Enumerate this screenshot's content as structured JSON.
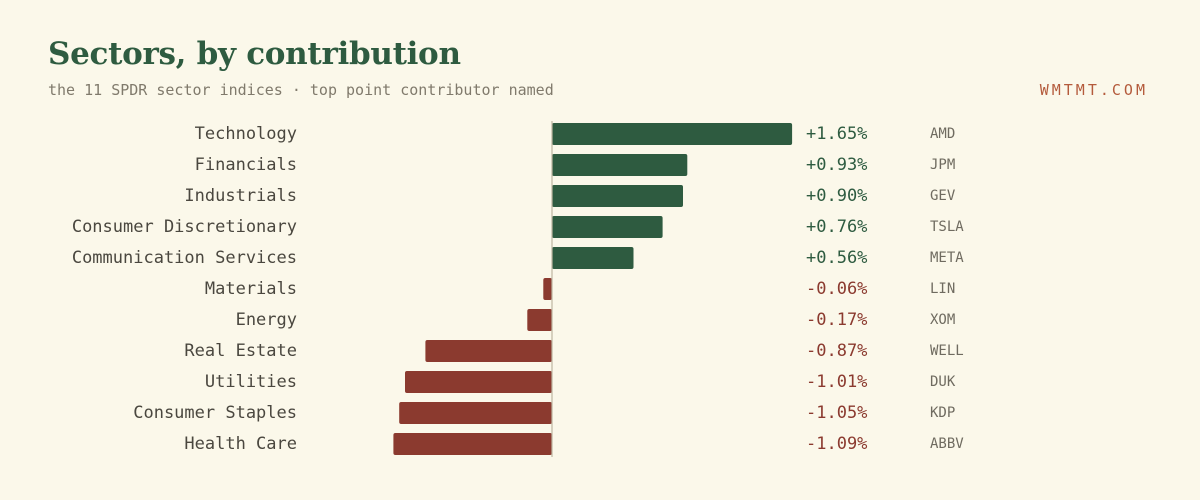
{
  "header": {
    "title": "Sectors, by contribution",
    "subtitle": "the 11 SPDR sector indices · top point contributor named",
    "brand": "WMTMT.COM"
  },
  "colors": {
    "positive": "#2e5b40",
    "negative": "#8b3a2f",
    "axis": "#bdb6a2"
  },
  "chart_data": {
    "type": "bar",
    "orientation": "horizontal",
    "title": "Sectors, by contribution",
    "subtitle": "the 11 SPDR sector indices · top point contributor named",
    "categories": [
      "Technology",
      "Financials",
      "Industrials",
      "Consumer Discretionary",
      "Communication Services",
      "Materials",
      "Energy",
      "Real Estate",
      "Utilities",
      "Consumer Staples",
      "Health Care"
    ],
    "values": [
      1.65,
      0.93,
      0.9,
      0.76,
      0.56,
      -0.06,
      -0.17,
      -0.87,
      -1.01,
      -1.05,
      -1.09
    ],
    "value_labels": [
      "+1.65%",
      "+0.93%",
      "+0.90%",
      "+0.76%",
      "+0.56%",
      "-0.06%",
      "-0.17%",
      "-0.87%",
      "-1.01%",
      "-1.05%",
      "-1.09%"
    ],
    "top_contributors": [
      "AMD",
      "JPM",
      "GEV",
      "TSLA",
      "META",
      "LIN",
      "XOM",
      "WELL",
      "DUK",
      "KDP",
      "ABBV"
    ],
    "xlim": [
      -1.09,
      1.65
    ],
    "grid": false,
    "legend": "none"
  }
}
